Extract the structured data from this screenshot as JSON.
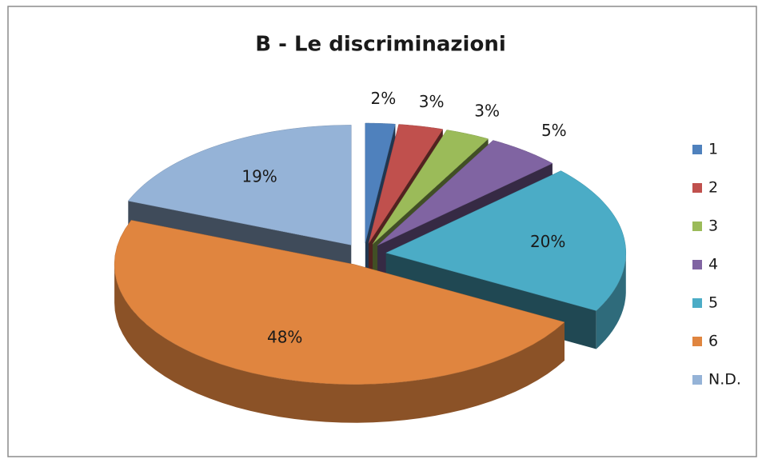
{
  "chart_data": {
    "type": "pie",
    "title": "B - Le discriminazioni",
    "categories": [
      "1",
      "2",
      "3",
      "4",
      "5",
      "6",
      "N.D."
    ],
    "values": [
      2,
      3,
      3,
      5,
      20,
      48,
      19
    ],
    "value_labels": [
      "2%",
      "3%",
      "3%",
      "5%",
      "20%",
      "48%",
      "19%"
    ],
    "colors": [
      "#4f81bd",
      "#c0504d",
      "#9bbb59",
      "#8064a2",
      "#4bacc6",
      "#e0853f",
      "#95b3d7"
    ],
    "legend": "right"
  }
}
